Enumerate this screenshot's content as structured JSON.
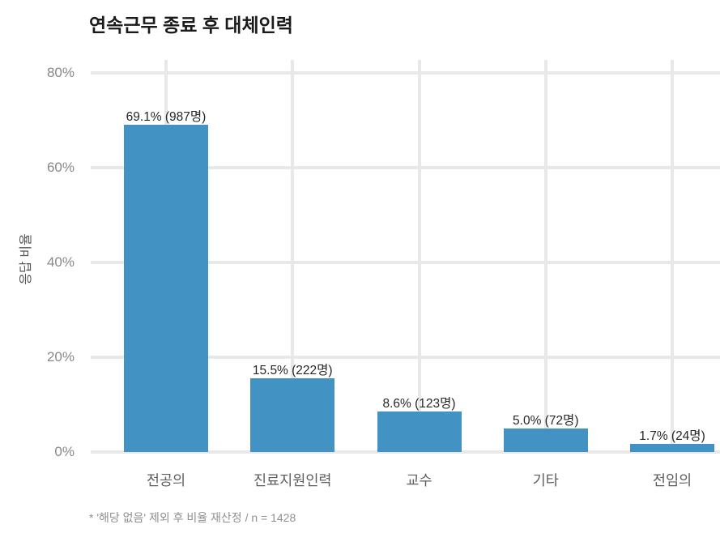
{
  "title": "연속근무 종료 후 대체인력",
  "footnote": "* '해당 없음' 제외 후 비율 재산정 / n = 1428",
  "chart_data": {
    "type": "bar",
    "title": "연속근무 종료 후 대체인력",
    "categories": [
      "전공의",
      "진료지원인력",
      "교수",
      "기타",
      "전임의"
    ],
    "values": [
      69.1,
      15.5,
      8.6,
      5.0,
      1.7
    ],
    "counts": [
      987,
      222,
      123,
      72,
      24
    ],
    "bar_labels": [
      "69.1% (987명)",
      "15.5% (222명)",
      "8.6% (123명)",
      "5.0% (72명)",
      "1.7% (24명)"
    ],
    "xlabel": "",
    "ylabel": "응답 비율",
    "y_ticks": [
      "0%",
      "20%",
      "40%",
      "60%",
      "80%"
    ],
    "y_tick_values": [
      0,
      20,
      40,
      60,
      80
    ],
    "ylim": [
      0,
      82.7
    ],
    "grid": true,
    "legend": false,
    "bar_color": "#4293c4",
    "grid_color": "#e8e8e8",
    "background_color": "#ffffff",
    "footnote": "* '해당 없음' 제외 후 비율 재산정 / n = 1428",
    "n": 1428
  }
}
